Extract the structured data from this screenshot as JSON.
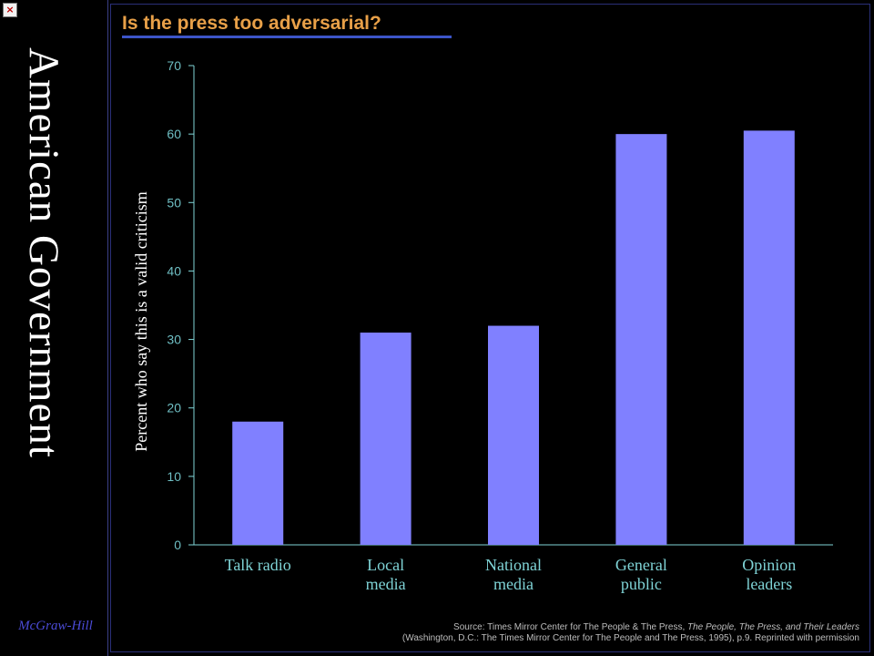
{
  "window": {
    "close_glyph": "×"
  },
  "sidebar": {
    "vertical_title": "American Government",
    "publisher": "McGraw-Hill"
  },
  "chart_data": {
    "type": "bar",
    "title": "Is the press too adversarial?",
    "ylabel": "Percent who say this is a valid criticism",
    "xlabel": "",
    "categories": [
      "Talk radio",
      "Local media",
      "National media",
      "General public",
      "Opinion leaders"
    ],
    "category_lines": [
      [
        "Talk radio"
      ],
      [
        "Local",
        "media"
      ],
      [
        "National",
        "media"
      ],
      [
        "General",
        "public"
      ],
      [
        "Opinion",
        "leaders"
      ]
    ],
    "values": [
      18,
      31,
      32,
      60,
      60.5
    ],
    "ylim": [
      0,
      70
    ],
    "yticks": [
      0,
      10,
      20,
      30,
      40,
      50,
      60,
      70
    ],
    "bar_color": "#8080ff",
    "grid": false
  },
  "source": {
    "line1_prefix": "Source: Times Mirror Center for The People & The Press, ",
    "line1_italic": "The People, The Press, and Their Leaders",
    "line2": "(Washington, D.C.: The Times Mirror Center for The People and The Press, 1995), p.9. Reprinted with permission"
  }
}
